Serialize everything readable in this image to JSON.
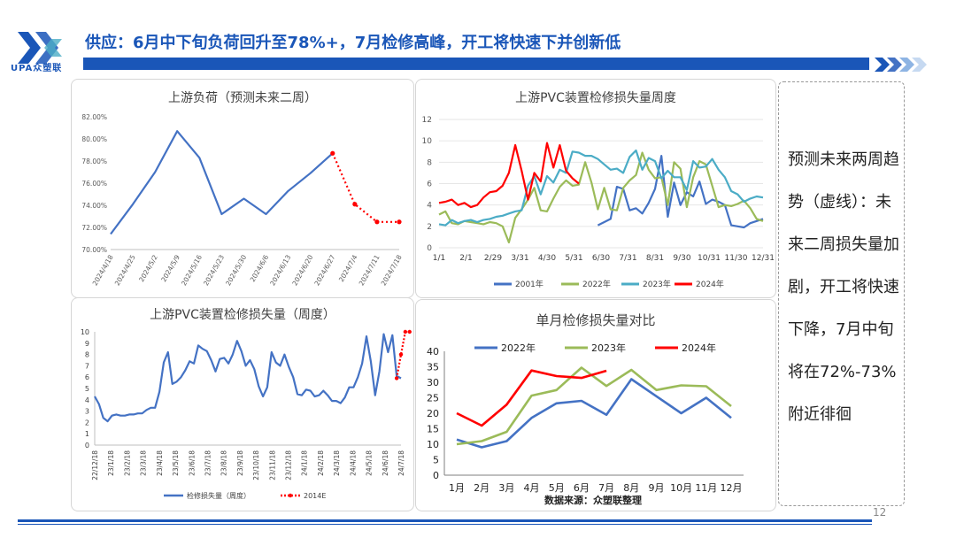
{
  "header": {
    "logo_text": "UPA众塑联",
    "title": "供应：6月中下旬负荷回升至78%+，7月检修高峰，开工将快速下并创新低"
  },
  "colors": {
    "brand": "#1a56b8",
    "line_blue": "#4472c4",
    "green": "#9bbb59",
    "teal": "#4bacc6",
    "red": "#ff0000"
  },
  "chart_data": [
    {
      "type": "line",
      "title": "上游负荷（预测未来二周）",
      "x": [
        "2024/4/18",
        "2024/4/25",
        "2024/5/2",
        "2024/5/9",
        "2024/5/16",
        "2024/5/23",
        "2024/5/30",
        "2024/6/6",
        "2024/6/13",
        "2024/6/20",
        "2024/6/27",
        "2024/7/4",
        "2024/7/11",
        "2024/7/18"
      ],
      "y_ticks": [
        "70.00%",
        "72.00%",
        "74.00%",
        "76.00%",
        "78.00%",
        "80.00%",
        "82.00%"
      ],
      "ylim": [
        70,
        82
      ],
      "series": [
        {
          "style": "solid",
          "color": "#4472c4",
          "values": [
            71.4,
            74.1,
            77.0,
            80.7,
            78.3,
            73.2,
            74.6,
            73.2,
            75.3,
            76.9,
            78.7,
            null,
            null,
            null
          ]
        },
        {
          "style": "dotted",
          "color": "#ff0000",
          "values": [
            null,
            null,
            null,
            null,
            null,
            null,
            null,
            null,
            null,
            null,
            78.7,
            74.1,
            72.5,
            72.5
          ]
        }
      ]
    },
    {
      "type": "line",
      "title": "上游PVC装置检修损失量周度",
      "x_ticks": [
        "1/1",
        "2/1",
        "2/29",
        "3/31",
        "4/30",
        "5/31",
        "6/30",
        "7/31",
        "8/31",
        "9/30",
        "10/31",
        "11/30",
        "12/31"
      ],
      "y_ticks": [
        "0",
        "2",
        "4",
        "6",
        "8",
        "10",
        "12"
      ],
      "ylim": [
        0,
        12
      ],
      "series": [
        {
          "name": "2001年",
          "color": "#4472c4",
          "values": [
            null,
            null,
            null,
            null,
            null,
            null,
            null,
            null,
            null,
            null,
            null,
            null,
            null,
            null,
            null,
            null,
            null,
            null,
            null,
            null,
            null,
            null,
            null,
            null,
            null,
            2.1,
            2.4,
            2.7,
            5.7,
            5.5,
            3.5,
            3.7,
            3.2,
            4.2,
            5.5,
            8.6,
            2.9,
            6.1,
            4.0,
            5.2,
            4.8,
            6.2,
            4.1,
            4.5,
            4.3,
            4.0,
            2.1,
            2.0,
            1.9,
            2.3,
            2.5,
            2.7
          ]
        },
        {
          "name": "2022年",
          "color": "#9bbb59",
          "values": [
            3.1,
            3.4,
            2.3,
            2.2,
            2.5,
            2.4,
            2.3,
            2.2,
            2.4,
            2.3,
            2.0,
            0.5,
            2.8,
            3.6,
            4.5,
            5.6,
            3.5,
            3.4,
            4.6,
            5.7,
            6.3,
            5.8,
            5.9,
            8.0,
            6.1,
            3.6,
            5.6,
            3.6,
            3.5,
            5.6,
            6.3,
            6.8,
            8.9,
            7.3,
            6.5,
            6.6,
            4.0,
            8.0,
            7.4,
            3.8,
            6.6,
            8.1,
            7.8,
            5.8,
            3.8,
            4.0,
            3.9,
            4.1,
            4.4,
            3.7,
            2.7,
            2.5
          ]
        },
        {
          "name": "2023年",
          "color": "#4bacc6",
          "values": [
            2.2,
            2.1,
            2.6,
            2.3,
            2.5,
            2.6,
            2.4,
            2.6,
            2.7,
            2.9,
            3.0,
            3.2,
            3.4,
            3.5,
            5.8,
            6.7,
            5.0,
            6.7,
            6.1,
            7.3,
            7.0,
            9.0,
            8.9,
            8.6,
            8.6,
            8.3,
            7.8,
            7.3,
            7.4,
            7.0,
            8.5,
            9.1,
            7.3,
            8.4,
            8.1,
            6.5,
            7.2,
            6.6,
            6.6,
            5.4,
            8.1,
            7.5,
            7.6,
            8.3,
            7.3,
            6.6,
            5.3,
            5.0,
            4.3,
            4.6,
            4.8,
            4.7
          ]
        },
        {
          "name": "2024年",
          "color": "#ff0000",
          "values": [
            4.2,
            4.3,
            4.5,
            4.0,
            4.2,
            3.8,
            4.0,
            4.7,
            5.2,
            5.3,
            5.8,
            7.0,
            9.6,
            7.2,
            4.5,
            7.0,
            6.2,
            9.8,
            7.5,
            9.6,
            7.2,
            6.5,
            6.0,
            null,
            null,
            null,
            null,
            null,
            null,
            null,
            null,
            null,
            null,
            null,
            null,
            null,
            null,
            null,
            null,
            null,
            null,
            null,
            null,
            null,
            null,
            null,
            null,
            null,
            null,
            null,
            null,
            null
          ]
        }
      ]
    },
    {
      "type": "line",
      "title": "上游PVC装置检修损失量（周度）",
      "x_ticks": [
        "22/12/18",
        "23/1/18",
        "23/2/18",
        "23/3/18",
        "23/4/18",
        "23/5/18",
        "23/6/18",
        "23/7/18",
        "23/8/18",
        "23/9/18",
        "23/10/18",
        "23/11/18",
        "23/12/18",
        "24/1/18",
        "24/2/18",
        "24/3/18",
        "24/4/18",
        "24/5/18",
        "24/6/18",
        "24/7/18"
      ],
      "y_ticks": [
        "0",
        "1",
        "2",
        "3",
        "4",
        "5",
        "6",
        "7",
        "8",
        "9",
        "10"
      ],
      "ylim": [
        0,
        10
      ],
      "series": [
        {
          "name": "检修损失量（周度）",
          "style": "solid",
          "color": "#4472c4",
          "values": [
            4.3,
            3.6,
            2.4,
            2.1,
            2.6,
            2.7,
            2.6,
            2.6,
            2.7,
            2.7,
            2.8,
            2.8,
            3.1,
            3.3,
            3.3,
            4.7,
            7.3,
            8.2,
            5.4,
            5.6,
            6.0,
            6.6,
            7.4,
            7.2,
            8.8,
            8.5,
            8.3,
            7.5,
            6.5,
            7.6,
            7.7,
            7.2,
            8.0,
            9.2,
            8.3,
            7.0,
            7.5,
            6.7,
            5.2,
            4.3,
            5.1,
            8.2,
            7.3,
            7.0,
            8.0,
            6.9,
            6.0,
            4.5,
            4.4,
            4.9,
            4.8,
            4.3,
            4.4,
            4.8,
            4.4,
            3.9,
            3.9,
            3.7,
            4.2,
            5.1,
            5.1,
            6.0,
            7.2,
            9.6,
            7.4,
            4.4,
            6.5,
            9.8,
            8.2,
            9.7,
            6.1,
            5.9
          ]
        },
        {
          "name": "2014E",
          "style": "dotted",
          "color": "#ff0000",
          "values": [
            null,
            null,
            null,
            null,
            null,
            null,
            null,
            null,
            null,
            null,
            null,
            null,
            null,
            null,
            null,
            null,
            null,
            null,
            null,
            null,
            null,
            null,
            null,
            null,
            null,
            null,
            null,
            null,
            null,
            null,
            null,
            null,
            null,
            null,
            null,
            null,
            null,
            null,
            null,
            null,
            null,
            null,
            null,
            null,
            null,
            null,
            null,
            null,
            null,
            null,
            null,
            null,
            null,
            null,
            null,
            null,
            null,
            null,
            null,
            null,
            null,
            null,
            null,
            null,
            null,
            null,
            null,
            null,
            null,
            null,
            5.9,
            8.0,
            10.0,
            10.0
          ]
        }
      ]
    },
    {
      "type": "line",
      "title": "单月检修损失量对比",
      "categories": [
        "1月",
        "2月",
        "3月",
        "4月",
        "5月",
        "6月",
        "7月",
        "8月",
        "9月",
        "10月",
        "11月",
        "12月"
      ],
      "y_ticks": [
        "0",
        "5",
        "10",
        "15",
        "20",
        "25",
        "30",
        "35",
        "40"
      ],
      "ylim": [
        0,
        40
      ],
      "source": "数据来源：众塑联整理",
      "series": [
        {
          "name": "2022年",
          "color": "#4472c4",
          "values": [
            11.5,
            9.0,
            11.0,
            18.5,
            23.2,
            24.0,
            19.5,
            31.0,
            25.5,
            20.0,
            25.0,
            18.5
          ]
        },
        {
          "name": "2023年",
          "color": "#9bbb59",
          "values": [
            10.0,
            11.0,
            14.0,
            25.7,
            27.5,
            34.7,
            28.8,
            34.0,
            27.5,
            29.0,
            28.7,
            22.3
          ]
        },
        {
          "name": "2024年",
          "color": "#ff0000",
          "values": [
            20.0,
            16.0,
            22.8,
            33.8,
            32.0,
            31.4,
            33.7,
            null,
            null,
            null,
            null,
            null
          ]
        }
      ]
    }
  ],
  "note": {
    "text": "预测未来两周趋势（虚线）：未来二周损失量加剧，开工将快速下降，7月中旬将在72%-73%附近徘徊"
  },
  "footer": {
    "page_number": "12"
  }
}
